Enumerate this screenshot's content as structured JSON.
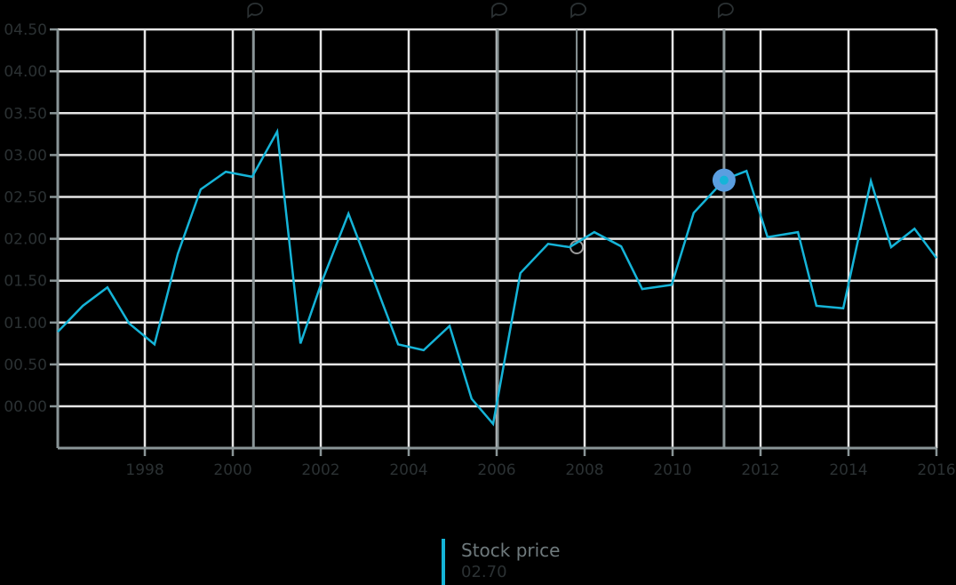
{
  "chart_data": {
    "type": "line",
    "title": "",
    "xlabel": "",
    "ylabel": "",
    "xlim": [
      1996.02,
      2016.0
    ],
    "ylim": [
      -0.5,
      4.5
    ],
    "grid": true,
    "legend_position": "bottom-center",
    "y_ticks": [
      "00.00",
      "00.50",
      "01.00",
      "01.50",
      "02.00",
      "02.50",
      "03.00",
      "03.50",
      "04.00",
      "04.50"
    ],
    "y_tick_values": [
      0,
      0.5,
      1,
      1.5,
      2,
      2.5,
      3,
      3.5,
      4,
      4.5
    ],
    "x_ticks": [
      "1998",
      "2000",
      "2002",
      "2004",
      "2006",
      "2008",
      "2010",
      "2012",
      "2014",
      "2016"
    ],
    "x_tick_values": [
      1998,
      2000,
      2002,
      2004,
      2006,
      2008,
      2010,
      2012,
      2014,
      2016
    ],
    "series": [
      {
        "name": "Stock price",
        "color": "#15b4d8",
        "x": [
          1996.02,
          1996.59,
          1997.15,
          1997.64,
          1998.22,
          1998.75,
          1999.27,
          1999.84,
          2000.44,
          2001.01,
          2001.54,
          2002.02,
          2002.63,
          2003.19,
          2003.76,
          2004.34,
          2004.93,
          2005.43,
          2005.92,
          2006.54,
          2007.17,
          2007.66,
          2008.22,
          2008.83,
          2009.31,
          2009.98,
          2010.48,
          2011.19,
          2011.68,
          2012.16,
          2012.85,
          2013.27,
          2013.88,
          2014.51,
          2014.97,
          2015.5,
          2016.0
        ],
        "values": [
          0.89,
          1.2,
          1.42,
          0.99,
          0.74,
          1.82,
          2.59,
          2.8,
          2.74,
          3.28,
          0.75,
          1.48,
          2.3,
          1.53,
          0.74,
          0.67,
          0.96,
          0.09,
          -0.21,
          1.59,
          1.94,
          1.9,
          2.08,
          1.91,
          1.4,
          1.45,
          2.31,
          2.71,
          2.81,
          2.02,
          2.08,
          1.2,
          1.17,
          2.69,
          1.9,
          2.12,
          1.77
        ]
      }
    ],
    "annotations": [
      {
        "type": "event-marker",
        "icon": "comment-icon",
        "x": 2000.47
      },
      {
        "type": "event-marker",
        "icon": "comment-icon",
        "x": 2006.02
      },
      {
        "type": "event-marker",
        "icon": "comment-icon",
        "x": 2007.82,
        "marker": "hollow-circle",
        "y": 1.9
      },
      {
        "type": "event-marker",
        "icon": "comment-icon",
        "x": 2011.17
      }
    ],
    "highlight": {
      "x": 2011.17,
      "y": 2.7,
      "color": "#5a9ee0"
    }
  },
  "legend": {
    "name": "Stock price",
    "value": "02.70",
    "color": "#15b4d8"
  },
  "colors": {
    "background": "#000000",
    "grid": "#e6e6e6",
    "axis": "#8a9597",
    "event_line": "#8a9597",
    "label": "#2b3133",
    "line": "#15b4d8",
    "highlight": "#5a9ee0"
  }
}
